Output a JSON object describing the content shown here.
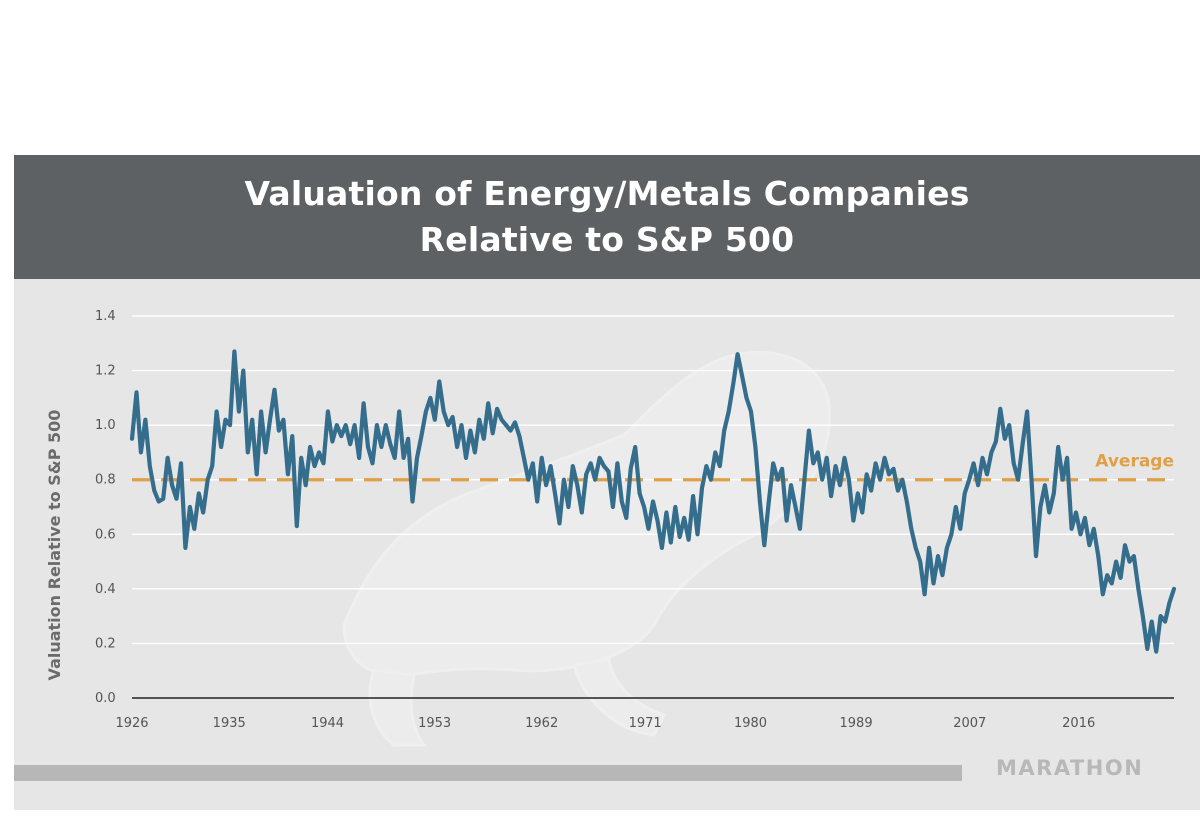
{
  "chart_data": {
    "type": "line",
    "title": "Valuation of Energy/Metals Companies",
    "subtitle": "Relative to S&P 500",
    "xlabel": "",
    "ylabel": "Valuation Relative to S&P 500",
    "x_ticks": [
      "1926",
      "1935",
      "1944",
      "1953",
      "1962",
      "1971",
      "1980",
      "1989",
      "2007",
      "2016"
    ],
    "y_ticks": [
      "0.0",
      "0.2",
      "0.4",
      "0.6",
      "0.8",
      "1.0",
      "1.2",
      "1.4"
    ],
    "ylim": [
      0,
      1.4
    ],
    "grid": true,
    "colors": {
      "line": "#356d8c",
      "average": "#e0a048",
      "grid": "#ffffff",
      "axis": "#222222"
    },
    "average": {
      "label": "Average",
      "value": 0.8
    },
    "series": [
      {
        "name": "Valuation Relative to S&P 500",
        "points": [
          [
            0.0,
            0.95
          ],
          [
            0.3,
            1.12
          ],
          [
            0.6,
            0.9
          ],
          [
            0.9,
            1.02
          ],
          [
            1.2,
            0.85
          ],
          [
            1.5,
            0.76
          ],
          [
            1.8,
            0.72
          ],
          [
            2.1,
            0.73
          ],
          [
            2.4,
            0.88
          ],
          [
            2.7,
            0.78
          ],
          [
            3.0,
            0.73
          ],
          [
            3.3,
            0.86
          ],
          [
            3.6,
            0.55
          ],
          [
            3.9,
            0.7
          ],
          [
            4.2,
            0.62
          ],
          [
            4.5,
            0.75
          ],
          [
            4.8,
            0.68
          ],
          [
            5.1,
            0.8
          ],
          [
            5.4,
            0.85
          ],
          [
            5.7,
            1.05
          ],
          [
            6.0,
            0.92
          ],
          [
            6.3,
            1.02
          ],
          [
            6.6,
            1.0
          ],
          [
            6.9,
            1.27
          ],
          [
            7.2,
            1.05
          ],
          [
            7.5,
            1.2
          ],
          [
            7.8,
            0.9
          ],
          [
            8.1,
            1.02
          ],
          [
            8.4,
            0.82
          ],
          [
            8.7,
            1.05
          ],
          [
            9.0,
            0.9
          ],
          [
            9.3,
            1.02
          ],
          [
            9.6,
            1.13
          ],
          [
            9.9,
            0.98
          ],
          [
            10.2,
            1.02
          ],
          [
            10.5,
            0.82
          ],
          [
            10.8,
            0.96
          ],
          [
            11.1,
            0.63
          ],
          [
            11.4,
            0.88
          ],
          [
            11.7,
            0.78
          ],
          [
            12.0,
            0.92
          ],
          [
            12.3,
            0.85
          ],
          [
            12.6,
            0.9
          ],
          [
            12.9,
            0.86
          ],
          [
            13.2,
            1.05
          ],
          [
            13.5,
            0.94
          ],
          [
            13.8,
            1.0
          ],
          [
            14.1,
            0.96
          ],
          [
            14.4,
            1.0
          ],
          [
            14.7,
            0.93
          ],
          [
            15.0,
            1.0
          ],
          [
            15.3,
            0.88
          ],
          [
            15.6,
            1.08
          ],
          [
            15.9,
            0.92
          ],
          [
            16.2,
            0.86
          ],
          [
            16.5,
            1.0
          ],
          [
            16.8,
            0.92
          ],
          [
            17.1,
            1.0
          ],
          [
            17.4,
            0.93
          ],
          [
            17.7,
            0.88
          ],
          [
            18.0,
            1.05
          ],
          [
            18.3,
            0.88
          ],
          [
            18.6,
            0.95
          ],
          [
            18.9,
            0.72
          ],
          [
            19.2,
            0.88
          ],
          [
            19.5,
            0.96
          ],
          [
            19.8,
            1.05
          ],
          [
            20.1,
            1.1
          ],
          [
            20.4,
            1.02
          ],
          [
            20.7,
            1.16
          ],
          [
            21.0,
            1.05
          ],
          [
            21.3,
            1.0
          ],
          [
            21.6,
            1.03
          ],
          [
            21.9,
            0.92
          ],
          [
            22.2,
            1.0
          ],
          [
            22.5,
            0.88
          ],
          [
            22.8,
            0.98
          ],
          [
            23.1,
            0.9
          ],
          [
            23.4,
            1.02
          ],
          [
            23.7,
            0.95
          ],
          [
            24.0,
            1.08
          ],
          [
            24.3,
            0.97
          ],
          [
            24.6,
            1.06
          ],
          [
            24.9,
            1.02
          ],
          [
            25.2,
            1.0
          ],
          [
            25.5,
            0.98
          ],
          [
            25.8,
            1.01
          ],
          [
            26.1,
            0.96
          ],
          [
            26.4,
            0.88
          ],
          [
            26.7,
            0.8
          ],
          [
            27.0,
            0.86
          ],
          [
            27.3,
            0.72
          ],
          [
            27.6,
            0.88
          ],
          [
            27.9,
            0.78
          ],
          [
            28.2,
            0.85
          ],
          [
            28.5,
            0.75
          ],
          [
            28.8,
            0.64
          ],
          [
            29.1,
            0.8
          ],
          [
            29.4,
            0.7
          ],
          [
            29.7,
            0.85
          ],
          [
            30.0,
            0.78
          ],
          [
            30.3,
            0.68
          ],
          [
            30.6,
            0.82
          ],
          [
            30.9,
            0.86
          ],
          [
            31.2,
            0.8
          ],
          [
            31.5,
            0.88
          ],
          [
            31.8,
            0.85
          ],
          [
            32.1,
            0.83
          ],
          [
            32.4,
            0.7
          ],
          [
            32.7,
            0.86
          ],
          [
            33.0,
            0.72
          ],
          [
            33.3,
            0.66
          ],
          [
            33.6,
            0.84
          ],
          [
            33.9,
            0.92
          ],
          [
            34.2,
            0.75
          ],
          [
            34.5,
            0.7
          ],
          [
            34.8,
            0.62
          ],
          [
            35.1,
            0.72
          ],
          [
            35.4,
            0.65
          ],
          [
            35.7,
            0.55
          ],
          [
            36.0,
            0.68
          ],
          [
            36.3,
            0.57
          ],
          [
            36.6,
            0.7
          ],
          [
            36.9,
            0.59
          ],
          [
            37.2,
            0.66
          ],
          [
            37.5,
            0.58
          ],
          [
            37.8,
            0.74
          ],
          [
            38.1,
            0.6
          ],
          [
            38.4,
            0.77
          ],
          [
            38.7,
            0.85
          ],
          [
            39.0,
            0.8
          ],
          [
            39.3,
            0.9
          ],
          [
            39.6,
            0.85
          ],
          [
            39.9,
            0.98
          ],
          [
            40.2,
            1.05
          ],
          [
            40.5,
            1.15
          ],
          [
            40.8,
            1.26
          ],
          [
            41.1,
            1.18
          ],
          [
            41.4,
            1.1
          ],
          [
            41.7,
            1.05
          ],
          [
            42.0,
            0.92
          ],
          [
            42.3,
            0.72
          ],
          [
            42.6,
            0.56
          ],
          [
            42.9,
            0.72
          ],
          [
            43.2,
            0.86
          ],
          [
            43.5,
            0.8
          ],
          [
            43.8,
            0.84
          ],
          [
            44.1,
            0.65
          ],
          [
            44.4,
            0.78
          ],
          [
            44.7,
            0.7
          ],
          [
            45.0,
            0.62
          ],
          [
            45.3,
            0.8
          ],
          [
            45.6,
            0.98
          ],
          [
            45.9,
            0.86
          ],
          [
            46.2,
            0.9
          ],
          [
            46.5,
            0.8
          ],
          [
            46.8,
            0.88
          ],
          [
            47.1,
            0.74
          ],
          [
            47.4,
            0.85
          ],
          [
            47.7,
            0.78
          ],
          [
            48.0,
            0.88
          ],
          [
            48.3,
            0.8
          ],
          [
            48.6,
            0.65
          ],
          [
            48.9,
            0.75
          ],
          [
            49.2,
            0.68
          ],
          [
            49.5,
            0.82
          ],
          [
            49.8,
            0.76
          ],
          [
            50.1,
            0.86
          ],
          [
            50.4,
            0.8
          ],
          [
            50.7,
            0.88
          ],
          [
            51.0,
            0.82
          ],
          [
            51.3,
            0.84
          ],
          [
            51.6,
            0.76
          ],
          [
            51.9,
            0.8
          ],
          [
            52.2,
            0.72
          ],
          [
            52.5,
            0.62
          ],
          [
            52.8,
            0.55
          ],
          [
            53.1,
            0.5
          ],
          [
            53.4,
            0.38
          ],
          [
            53.7,
            0.55
          ],
          [
            54.0,
            0.42
          ],
          [
            54.3,
            0.52
          ],
          [
            54.6,
            0.45
          ],
          [
            54.9,
            0.55
          ],
          [
            55.2,
            0.6
          ],
          [
            55.5,
            0.7
          ],
          [
            55.8,
            0.62
          ],
          [
            56.1,
            0.75
          ],
          [
            56.4,
            0.8
          ],
          [
            56.7,
            0.86
          ],
          [
            57.0,
            0.78
          ],
          [
            57.3,
            0.88
          ],
          [
            57.6,
            0.82
          ],
          [
            57.9,
            0.9
          ],
          [
            58.2,
            0.94
          ],
          [
            58.5,
            1.06
          ],
          [
            58.8,
            0.95
          ],
          [
            59.1,
            1.0
          ],
          [
            59.4,
            0.86
          ],
          [
            59.7,
            0.8
          ],
          [
            60.0,
            0.93
          ],
          [
            60.3,
            1.05
          ],
          [
            60.6,
            0.8
          ],
          [
            60.9,
            0.52
          ],
          [
            61.2,
            0.7
          ],
          [
            61.5,
            0.78
          ],
          [
            61.8,
            0.68
          ],
          [
            62.1,
            0.75
          ],
          [
            62.4,
            0.92
          ],
          [
            62.7,
            0.8
          ],
          [
            63.0,
            0.88
          ],
          [
            63.3,
            0.62
          ],
          [
            63.6,
            0.68
          ],
          [
            63.9,
            0.6
          ],
          [
            64.2,
            0.66
          ],
          [
            64.5,
            0.56
          ],
          [
            64.8,
            0.62
          ],
          [
            65.1,
            0.52
          ],
          [
            65.4,
            0.38
          ],
          [
            65.7,
            0.45
          ],
          [
            66.0,
            0.42
          ],
          [
            66.3,
            0.5
          ],
          [
            66.6,
            0.44
          ],
          [
            66.9,
            0.56
          ],
          [
            67.2,
            0.5
          ],
          [
            67.5,
            0.52
          ],
          [
            67.8,
            0.4
          ],
          [
            68.1,
            0.3
          ],
          [
            68.4,
            0.18
          ],
          [
            68.7,
            0.28
          ],
          [
            69.0,
            0.17
          ],
          [
            69.3,
            0.3
          ],
          [
            69.6,
            0.28
          ],
          [
            69.9,
            0.35
          ],
          [
            70.2,
            0.4
          ]
        ]
      }
    ],
    "x_range": [
      0,
      70.2
    ],
    "x_tick_positions": [
      0,
      6.55,
      13.17,
      20.39,
      27.6,
      34.57,
      41.67,
      48.78,
      56.44,
      63.78
    ]
  },
  "branding": {
    "logo_text": "MARATHON"
  }
}
